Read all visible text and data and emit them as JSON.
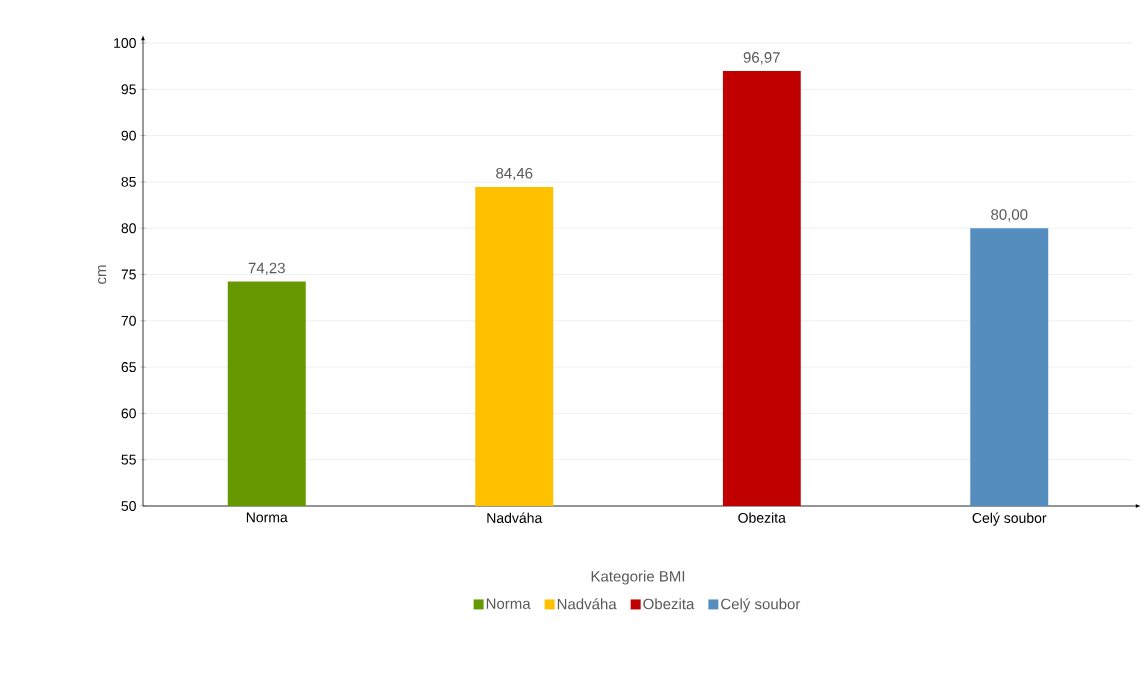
{
  "chart_data": {
    "type": "bar",
    "xlabel": "Kategorie BMI",
    "ylabel": "cm",
    "categories": [
      "Norma",
      "Nadváha",
      "Obezita",
      "Celý soubor"
    ],
    "series": [
      {
        "name": "Norma",
        "color": "#669900",
        "values": [
          74.23,
          null,
          null,
          null
        ],
        "value_labels": [
          "74,23",
          null,
          null,
          null
        ]
      },
      {
        "name": "Nadváha",
        "color": "#ffc000",
        "values": [
          null,
          84.46,
          null,
          null
        ],
        "value_labels": [
          null,
          "84,46",
          null,
          null
        ]
      },
      {
        "name": "Obezita",
        "color": "#c00000",
        "values": [
          null,
          null,
          96.97,
          null
        ],
        "value_labels": [
          null,
          null,
          "96,97",
          null
        ]
      },
      {
        "name": "Celý soubor",
        "color": "#558ebe",
        "values": [
          null,
          null,
          null,
          80.0
        ],
        "value_labels": [
          null,
          null,
          null,
          "80,00"
        ]
      }
    ],
    "ylim": [
      50,
      100
    ],
    "yticks": [
      50,
      55,
      60,
      65,
      70,
      75,
      80,
      85,
      90,
      95,
      100
    ],
    "grid": "y",
    "legend": "bottom"
  }
}
